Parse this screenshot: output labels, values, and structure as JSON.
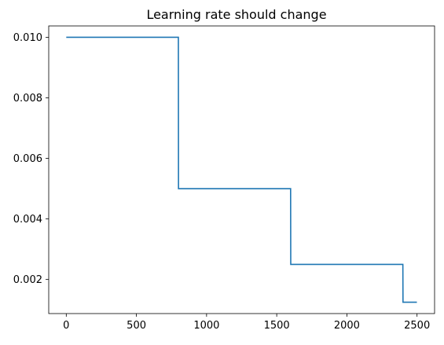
{
  "chart_data": {
    "type": "line",
    "title": "Learning rate should change",
    "xlabel": "",
    "ylabel": "",
    "xlim": [
      -125,
      2625
    ],
    "ylim": [
      0.000875,
      0.010375
    ],
    "x_ticks": [
      0,
      500,
      1000,
      1500,
      2000,
      2500
    ],
    "x_tick_labels": [
      "0",
      "500",
      "1000",
      "1500",
      "2000",
      "2500"
    ],
    "y_ticks": [
      0.002,
      0.004,
      0.006,
      0.008,
      0.01
    ],
    "y_tick_labels": [
      "0.002",
      "0.004",
      "0.006",
      "0.008",
      "0.010"
    ],
    "grid": false,
    "legend": "none",
    "series": [
      {
        "color": "#1f77b4",
        "points": [
          {
            "x": 0,
            "y": 0.01
          },
          {
            "x": 799,
            "y": 0.01
          },
          {
            "x": 800,
            "y": 0.005
          },
          {
            "x": 1599,
            "y": 0.005
          },
          {
            "x": 1600,
            "y": 0.0025
          },
          {
            "x": 2399,
            "y": 0.0025
          },
          {
            "x": 2400,
            "y": 0.00125
          },
          {
            "x": 2499,
            "y": 0.00125
          }
        ]
      }
    ]
  }
}
